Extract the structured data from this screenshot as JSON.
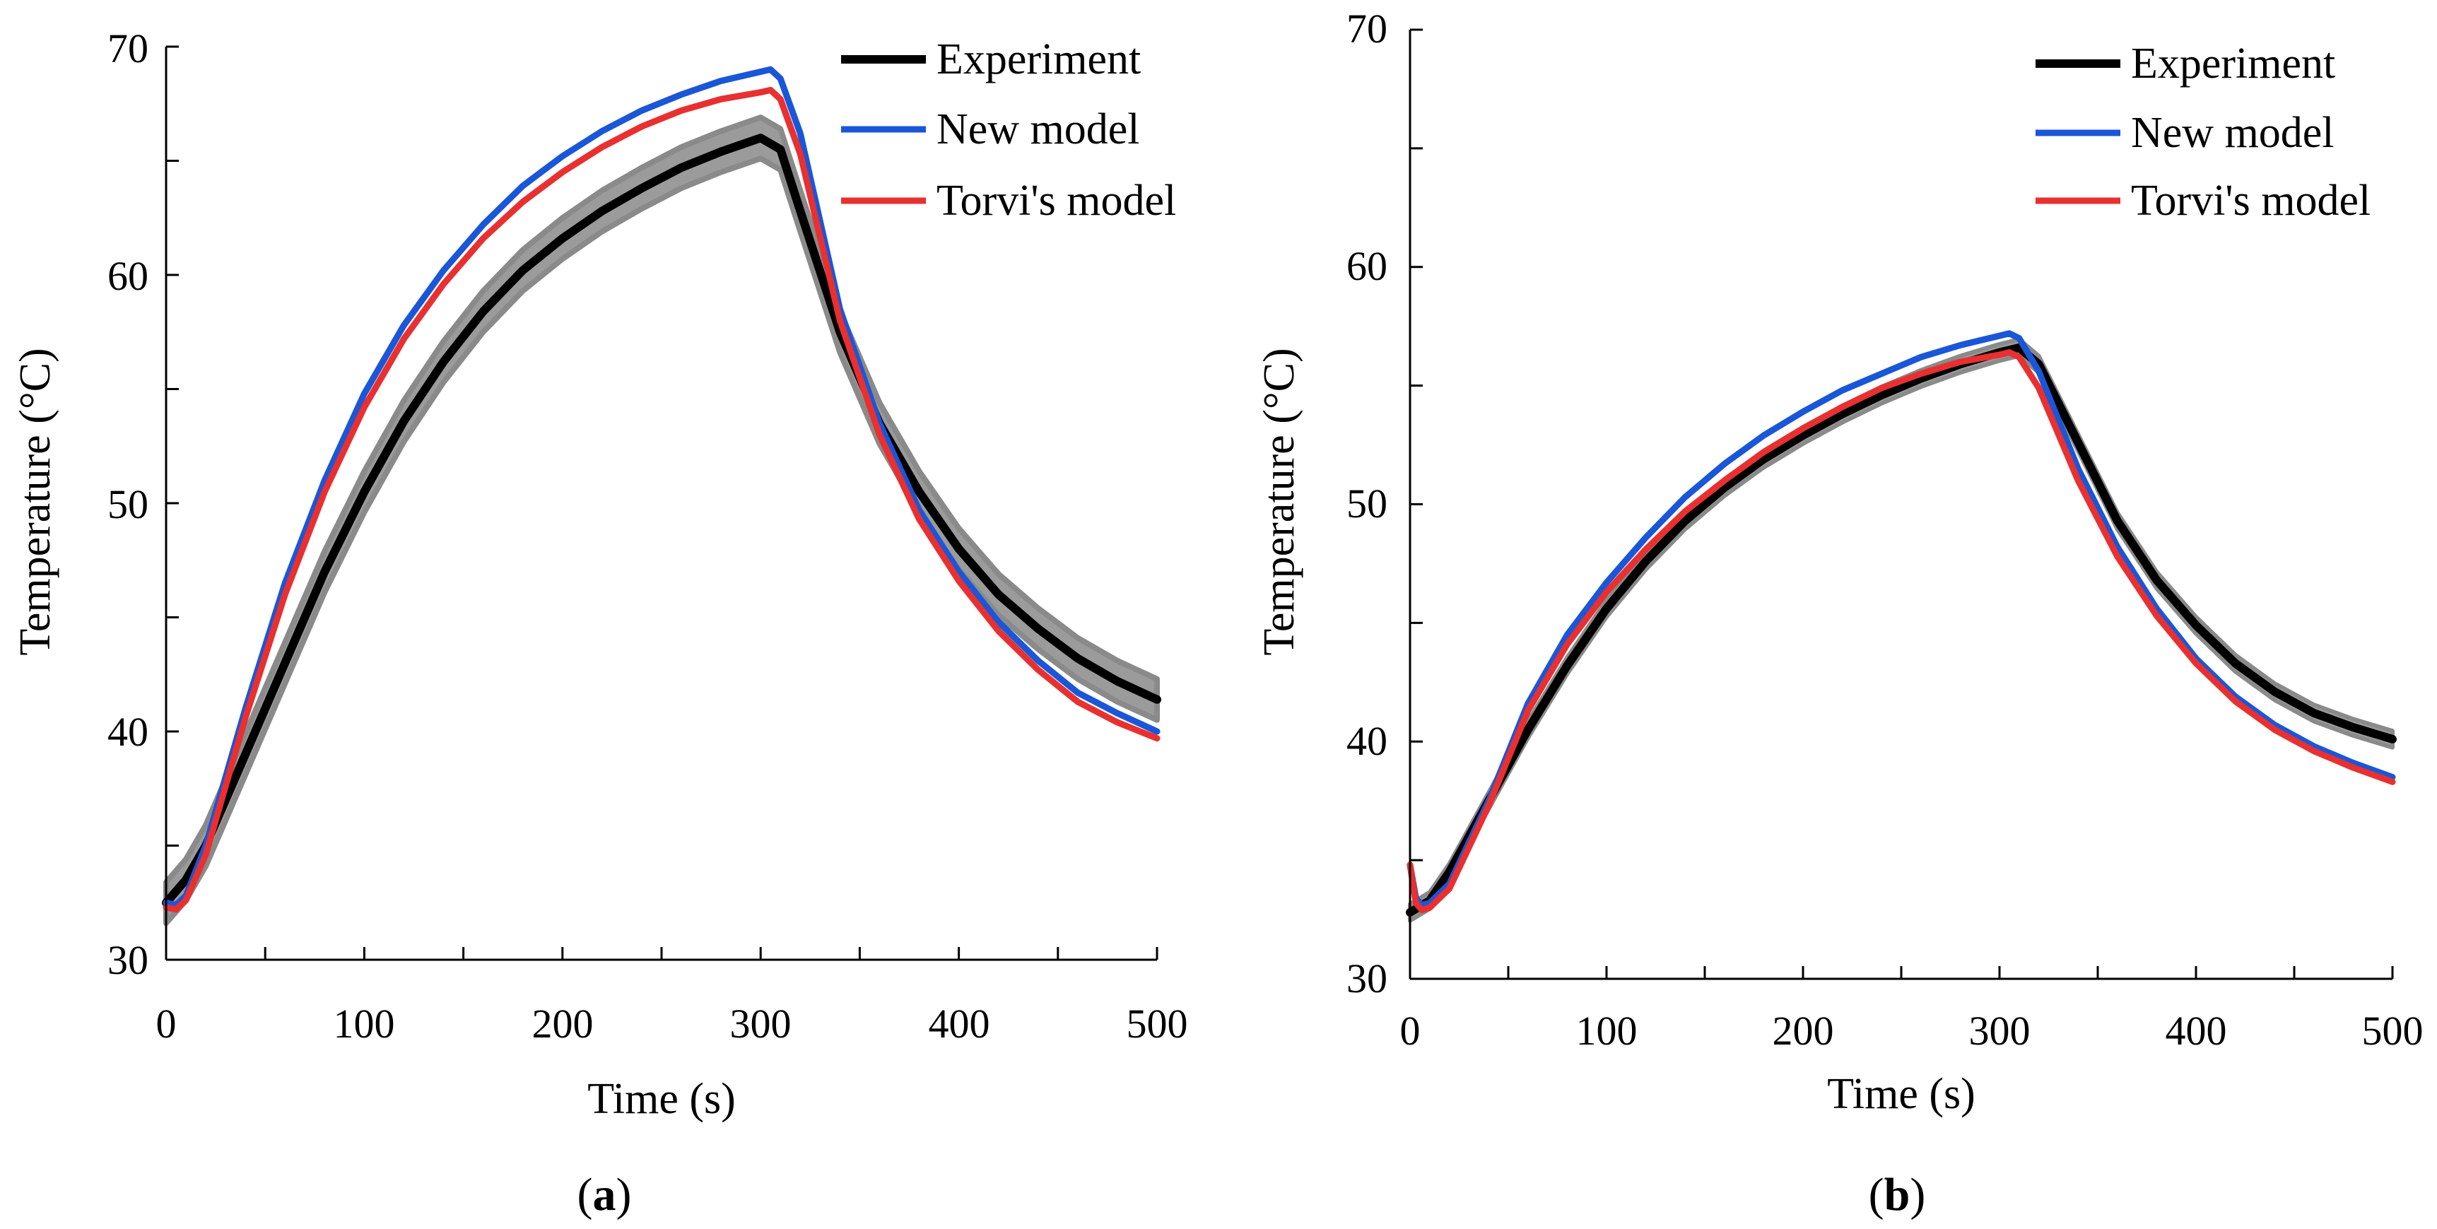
{
  "chart_data": [
    {
      "id": "a",
      "panel_label": "a",
      "type": "line",
      "xlabel": "Time (s)",
      "ylabel": "Temperature (°C)",
      "xlim": [
        0,
        500
      ],
      "ylim": [
        30,
        70
      ],
      "x_ticks": [
        0,
        100,
        200,
        300,
        400,
        500
      ],
      "y_ticks": [
        30,
        40,
        50,
        60,
        70
      ],
      "grid": false,
      "legend_position": "top-right",
      "experiment_band_half_width": 0.9,
      "series": [
        {
          "name": "Experiment",
          "color": "#000000",
          "x": [
            0,
            10,
            20,
            40,
            60,
            80,
            100,
            120,
            140,
            160,
            180,
            200,
            220,
            240,
            260,
            280,
            300,
            310,
            320,
            340,
            360,
            380,
            400,
            420,
            440,
            460,
            480,
            500
          ],
          "y": [
            32.5,
            33.5,
            35.0,
            39.0,
            43.0,
            47.0,
            50.5,
            53.6,
            56.2,
            58.4,
            60.2,
            61.6,
            62.8,
            63.8,
            64.7,
            65.4,
            66.0,
            65.5,
            62.8,
            57.5,
            53.5,
            50.5,
            48.0,
            46.0,
            44.5,
            43.2,
            42.2,
            41.4
          ]
        },
        {
          "name": "New model",
          "color": "#1a56d8",
          "x": [
            0,
            5,
            10,
            20,
            40,
            60,
            80,
            100,
            120,
            140,
            160,
            180,
            200,
            220,
            240,
            260,
            280,
            300,
            305,
            310,
            320,
            340,
            360,
            380,
            400,
            420,
            440,
            460,
            480,
            500
          ],
          "y": [
            32.5,
            32.4,
            32.8,
            35.0,
            41.0,
            46.5,
            51.0,
            54.8,
            57.8,
            60.2,
            62.2,
            63.9,
            65.2,
            66.3,
            67.2,
            67.9,
            68.5,
            68.9,
            69.0,
            68.6,
            66.2,
            58.5,
            53.5,
            49.7,
            47.0,
            44.8,
            43.1,
            41.7,
            40.8,
            40.0
          ]
        },
        {
          "name": "Torvi's model",
          "color": "#e83030",
          "x": [
            0,
            5,
            10,
            20,
            40,
            60,
            80,
            100,
            120,
            140,
            160,
            180,
            200,
            220,
            240,
            260,
            280,
            300,
            305,
            310,
            320,
            340,
            360,
            380,
            400,
            420,
            440,
            460,
            480,
            500
          ],
          "y": [
            32.3,
            32.2,
            32.6,
            34.6,
            40.6,
            46.0,
            50.5,
            54.2,
            57.2,
            59.6,
            61.6,
            63.2,
            64.5,
            65.6,
            66.5,
            67.2,
            67.7,
            68.0,
            68.1,
            67.7,
            65.3,
            58.0,
            53.0,
            49.3,
            46.6,
            44.4,
            42.7,
            41.3,
            40.4,
            39.7
          ]
        }
      ]
    },
    {
      "id": "b",
      "panel_label": "b",
      "type": "line",
      "xlabel": "Time (s)",
      "ylabel": "Temperature (°C)",
      "xlim": [
        0,
        500
      ],
      "ylim": [
        30,
        70
      ],
      "x_ticks": [
        0,
        100,
        200,
        300,
        400,
        500
      ],
      "y_ticks": [
        30,
        40,
        50,
        60,
        70
      ],
      "grid": false,
      "legend_position": "top-right",
      "experiment_band_half_width": 0.35,
      "series": [
        {
          "name": "Experiment",
          "color": "#000000",
          "x": [
            0,
            10,
            20,
            40,
            60,
            80,
            100,
            120,
            140,
            160,
            180,
            200,
            220,
            240,
            260,
            280,
            300,
            310,
            320,
            340,
            360,
            380,
            400,
            420,
            440,
            460,
            480,
            500
          ],
          "y": [
            32.8,
            33.3,
            34.5,
            37.5,
            40.5,
            43.2,
            45.6,
            47.6,
            49.3,
            50.7,
            51.9,
            52.9,
            53.8,
            54.6,
            55.3,
            55.9,
            56.4,
            56.6,
            55.9,
            52.6,
            49.3,
            46.8,
            44.9,
            43.3,
            42.1,
            41.2,
            40.6,
            40.1
          ]
        },
        {
          "name": "New model",
          "color": "#1a56d8",
          "x": [
            0,
            3,
            6,
            10,
            20,
            40,
            60,
            80,
            100,
            120,
            140,
            160,
            180,
            200,
            220,
            240,
            260,
            280,
            300,
            305,
            310,
            320,
            340,
            360,
            380,
            400,
            420,
            440,
            460,
            480,
            500
          ],
          "y": [
            34.8,
            33.4,
            33.1,
            33.2,
            34.0,
            37.5,
            41.6,
            44.5,
            46.7,
            48.6,
            50.3,
            51.7,
            52.9,
            53.9,
            54.8,
            55.5,
            56.2,
            56.7,
            57.1,
            57.2,
            57.0,
            55.6,
            51.5,
            48.2,
            45.6,
            43.5,
            41.9,
            40.7,
            39.8,
            39.1,
            38.5
          ]
        },
        {
          "name": "Torvi's model",
          "color": "#e83030",
          "x": [
            0,
            3,
            6,
            10,
            20,
            40,
            60,
            80,
            100,
            120,
            140,
            160,
            180,
            200,
            220,
            240,
            260,
            280,
            300,
            305,
            310,
            320,
            340,
            360,
            380,
            400,
            420,
            440,
            460,
            480,
            500
          ],
          "y": [
            34.8,
            33.2,
            32.9,
            33.0,
            33.8,
            37.3,
            41.3,
            44.1,
            46.3,
            48.1,
            49.7,
            51.0,
            52.2,
            53.2,
            54.1,
            54.9,
            55.5,
            56.0,
            56.3,
            56.4,
            56.2,
            54.9,
            51.0,
            47.8,
            45.3,
            43.3,
            41.7,
            40.5,
            39.6,
            38.9,
            38.3
          ]
        }
      ]
    }
  ]
}
